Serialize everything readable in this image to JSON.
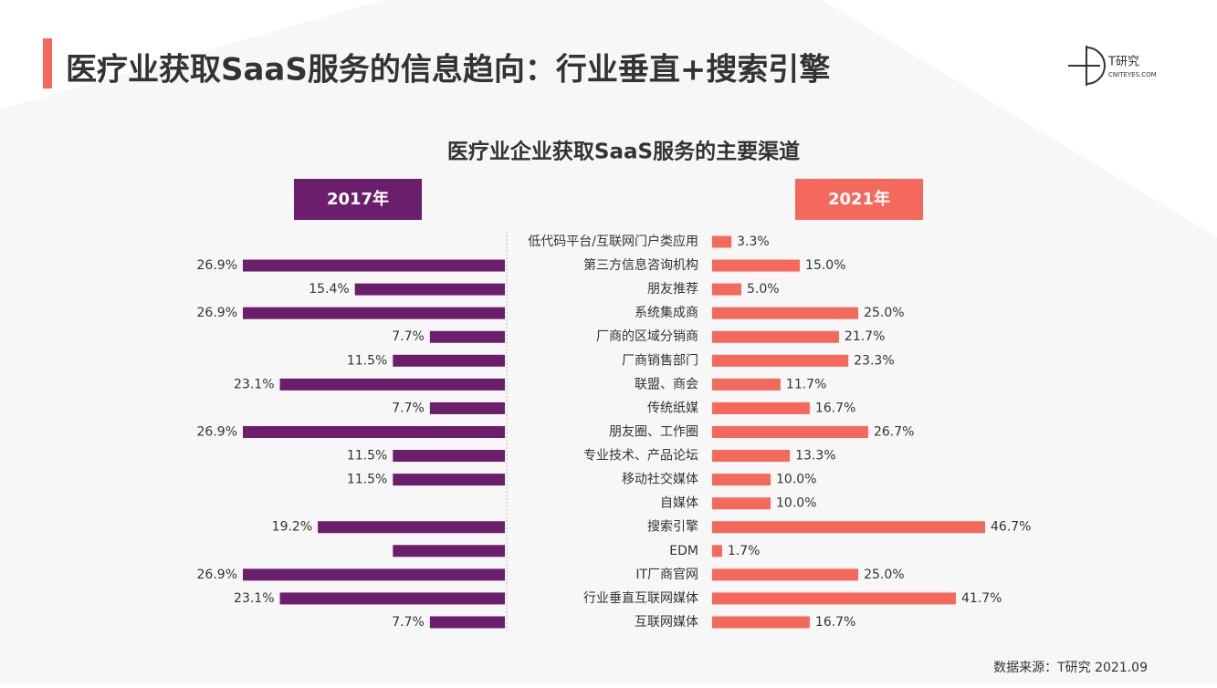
{
  "header": {
    "title": "医疗业获取SaaS服务的信息趋向：行业垂直+搜索引擎",
    "logo": {
      "name": "T研究",
      "domain": "CNITEYES.COM"
    }
  },
  "chart_data": {
    "type": "butterfly-bar",
    "title": "医疗业企业获取SaaS服务的主要渠道",
    "categories": [
      "低代码平台/互联网门户类应用",
      "第三方信息咨询机构",
      "朋友推荐",
      "系统集成商",
      "厂商的区域分销商",
      "厂商销售部门",
      "联盟、商会",
      "传统纸媒",
      "朋友圈、工作圈",
      "专业技术、产品论坛",
      "移动社交媒体",
      "自媒体",
      "搜索引擎",
      "EDM",
      "IT厂商官网",
      "行业垂直互联网媒体",
      "互联网媒体"
    ],
    "series": [
      {
        "name": "2017年",
        "color": "#6b1e6b",
        "values": [
          null,
          26.9,
          15.4,
          26.9,
          7.7,
          11.5,
          23.1,
          7.7,
          26.9,
          11.5,
          11.5,
          null,
          19.2,
          11.5,
          26.9,
          23.1,
          7.7
        ],
        "value_labels": [
          null,
          "26.9%",
          "15.4%",
          "26.9%",
          "7.7%",
          "11.5%",
          "23.1%",
          "7.7%",
          "26.9%",
          "11.5%",
          "11.5%",
          null,
          "19.2%",
          null,
          "26.9%",
          "23.1%",
          "7.7%"
        ]
      },
      {
        "name": "2021年",
        "color": "#f4695b",
        "values": [
          3.3,
          15.0,
          5.0,
          25.0,
          21.7,
          23.3,
          11.7,
          16.7,
          26.7,
          13.3,
          10.0,
          10.0,
          46.7,
          1.7,
          25.0,
          41.7,
          16.7
        ],
        "value_labels": [
          "3.3%",
          "15.0%",
          "5.0%",
          "25.0%",
          "21.7%",
          "23.3%",
          "11.7%",
          "16.7%",
          "26.7%",
          "13.3%",
          "10.0%",
          "10.0%",
          "46.7%",
          "1.7%",
          "25.0%",
          "41.7%",
          "16.7%"
        ]
      }
    ],
    "source": "数据来源：T研究 2021.09"
  }
}
